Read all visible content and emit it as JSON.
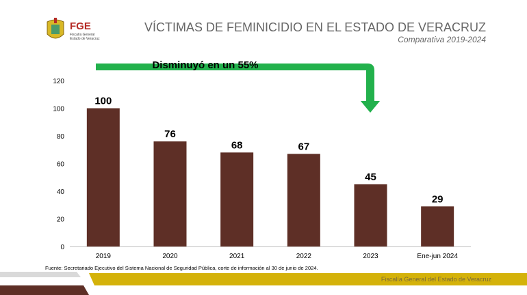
{
  "header": {
    "logo_text": "FGE",
    "logo_sub1": "Fiscalía General",
    "logo_sub2": "Estado de Veracruz",
    "title": "VÍCTIMAS DE FEMINICIDIO EN EL ESTADO DE VERACRUZ",
    "subtitle": "Comparativa 2019-2024"
  },
  "annotation": "Disminuyó en un 55%",
  "chart_data": {
    "type": "bar",
    "title": "VÍCTIMAS DE FEMINICIDIO EN EL ESTADO DE VERACRUZ",
    "categories": [
      "2019",
      "2020",
      "2021",
      "2022",
      "2023",
      "Ene-jun 2024"
    ],
    "values": [
      100,
      76,
      68,
      67,
      45,
      29
    ],
    "ylim": [
      0,
      120
    ],
    "yticks": [
      0,
      20,
      40,
      60,
      80,
      100,
      120
    ],
    "bar_color": "#5e2f26",
    "arrow_color": "#22b14c",
    "annotation": "Disminuyó en un 55%"
  },
  "footer": {
    "source": "Fuente: Secretariado Ejecutivo del Sistema Nacional de Seguridad Pública, corte de información al 30 de junio de 2024.",
    "band_text": "Fiscalía General del Estado de Veracruz",
    "gold": "#d4b20a",
    "brown": "#5e2f26"
  }
}
